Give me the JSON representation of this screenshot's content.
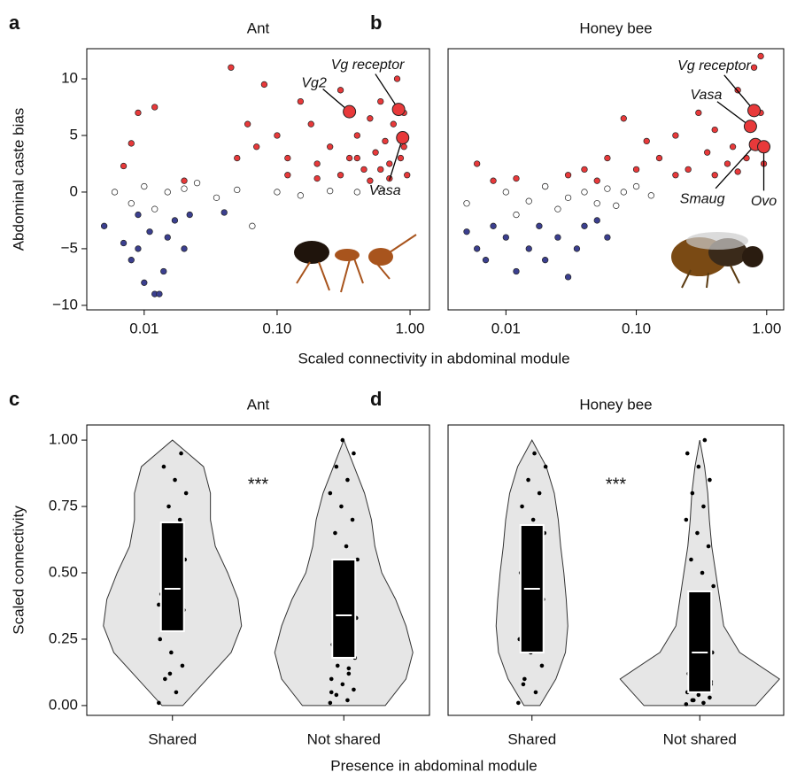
{
  "chart_data": [
    {
      "type": "scatter",
      "panel_label": "a",
      "title": "Ant",
      "ylabel": "Abdominal caste bias",
      "xlabel": "Scaled connectivity in abdominal module",
      "xlog": true,
      "xlim": [
        0.0037,
        1.4
      ],
      "ylim": [
        -10.4,
        12.66
      ],
      "xticks": [
        {
          "value": 0.01,
          "label": "0.01"
        },
        {
          "value": 0.1,
          "label": "0.10"
        },
        {
          "value": 1,
          "label": "1.00"
        }
      ],
      "yticks": [
        {
          "value": -10,
          "label": "−10"
        },
        {
          "value": -5,
          "label": "−5"
        },
        0,
        5,
        10
      ],
      "series": [
        {
          "color": "#e8393a",
          "x": [
            0.008,
            0.009,
            0.012,
            0.007,
            0.02,
            0.045,
            0.05,
            0.06,
            0.07,
            0.08,
            0.1,
            0.12,
            0.15,
            0.18,
            0.2,
            0.25,
            0.3,
            0.35,
            0.4,
            0.45,
            0.5,
            0.55,
            0.6,
            0.65,
            0.7,
            0.75,
            0.8,
            0.85,
            0.9,
            0.95,
            0.3,
            0.5,
            0.7,
            0.2,
            0.12,
            0.6,
            0.9,
            0.4
          ],
          "values": [
            4.3,
            7,
            7.5,
            2.3,
            1,
            11,
            3,
            6,
            4,
            9.5,
            5,
            3,
            8,
            6,
            2.5,
            4,
            9,
            3,
            5,
            2,
            6.5,
            3.5,
            8,
            4.5,
            2.5,
            6,
            10,
            3,
            7,
            1.5,
            1.5,
            1,
            1.2,
            1.2,
            1.5,
            2,
            4,
            3
          ]
        },
        {
          "color": "#ffffff",
          "x": [
            0.006,
            0.008,
            0.01,
            0.012,
            0.015,
            0.02,
            0.025,
            0.035,
            0.05,
            0.065,
            0.1,
            0.15,
            0.25,
            0.4,
            0.6
          ],
          "values": [
            0,
            -1,
            0.5,
            -1.5,
            0,
            0.3,
            0.8,
            -0.5,
            0.2,
            -3,
            0,
            -0.3,
            0.1,
            0,
            0.3
          ]
        },
        {
          "color": "#3b3f8f",
          "x": [
            0.005,
            0.007,
            0.008,
            0.009,
            0.01,
            0.011,
            0.012,
            0.013,
            0.014,
            0.015,
            0.017,
            0.02,
            0.022,
            0.04,
            0.009
          ],
          "values": [
            -3,
            -4.5,
            -6,
            -5,
            -8,
            -3.5,
            -9,
            -9,
            -7,
            -4,
            -2.5,
            -5,
            -2,
            -1.8,
            -2
          ]
        }
      ],
      "annotations": [
        {
          "text": "Vg2",
          "x": 0.35,
          "y": 7.1
        },
        {
          "text": "Vg receptor",
          "x": 0.82,
          "y": 7.3
        },
        {
          "text": "Vasa",
          "x": 0.88,
          "y": 4.8
        }
      ]
    },
    {
      "type": "scatter",
      "panel_label": "b",
      "title": "Honey bee",
      "xlog": true,
      "xlim": [
        0.0036,
        1.35
      ],
      "ylim": [
        -10.4,
        12.66
      ],
      "xticks": [
        {
          "value": 0.01,
          "label": "0.01"
        },
        {
          "value": 0.1,
          "label": "0.10"
        },
        {
          "value": 1,
          "label": "1.00"
        }
      ],
      "series": [
        {
          "color": "#e8393a",
          "x": [
            0.006,
            0.008,
            0.012,
            0.02,
            0.03,
            0.04,
            0.05,
            0.06,
            0.08,
            0.1,
            0.12,
            0.15,
            0.2,
            0.25,
            0.3,
            0.35,
            0.4,
            0.5,
            0.55,
            0.6,
            0.7,
            0.75,
            0.8,
            0.85,
            0.9,
            0.95,
            0.2,
            0.4,
            0.6,
            0.9
          ],
          "values": [
            2.5,
            1,
            1.2,
            0.5,
            1.5,
            2,
            1,
            3,
            6.5,
            2,
            4.5,
            3,
            5,
            2,
            7,
            3.5,
            5.5,
            2.5,
            4,
            9,
            3,
            6,
            11,
            4,
            12,
            2.5,
            1.5,
            1.5,
            1.8,
            7
          ]
        },
        {
          "color": "#ffffff",
          "x": [
            0.005,
            0.01,
            0.015,
            0.02,
            0.03,
            0.04,
            0.05,
            0.06,
            0.08,
            0.1,
            0.13,
            0.07,
            0.025,
            0.012
          ],
          "values": [
            -1,
            0,
            -0.8,
            0.5,
            -0.5,
            0,
            -1,
            0.3,
            0,
            0.5,
            -0.3,
            -1.2,
            -1.5,
            -2
          ]
        },
        {
          "color": "#3b3f8f",
          "x": [
            0.005,
            0.006,
            0.007,
            0.008,
            0.01,
            0.012,
            0.015,
            0.018,
            0.02,
            0.025,
            0.03,
            0.035,
            0.04,
            0.05,
            0.06
          ],
          "values": [
            -3.5,
            -5,
            -6,
            -3,
            -4,
            -7,
            -5,
            -3,
            -6,
            -4,
            -7.5,
            -5,
            -3,
            -2.5,
            -4
          ]
        }
      ],
      "annotations": [
        {
          "text": "Vg receptor",
          "x": 0.8,
          "y": 7.2
        },
        {
          "text": "Vasa",
          "x": 0.75,
          "y": 5.8
        },
        {
          "text": "Smaug",
          "x": 0.82,
          "y": 4.2
        },
        {
          "text": "Ovo",
          "x": 0.95,
          "y": 4
        }
      ]
    },
    {
      "type": "violin",
      "panel_label": "c",
      "title": "Ant",
      "ylabel": "Scaled connectivity",
      "xlabel": "Presence in abdominal module",
      "ylim": [
        -0.037,
        1.057
      ],
      "yticks": [
        {
          "value": 0,
          "label": "0.00"
        },
        {
          "value": 0.25,
          "label": "0.25"
        },
        {
          "value": 0.5,
          "label": "0.50"
        },
        {
          "value": 0.75,
          "label": "0.75"
        },
        {
          "value": 1,
          "label": "1.00"
        }
      ],
      "categories": [
        "Shared",
        "Not shared"
      ],
      "annotation": "***",
      "density_y": [
        0,
        0.1,
        0.2,
        0.3,
        0.4,
        0.5,
        0.6,
        0.7,
        0.8,
        0.9,
        1
      ],
      "groups": [
        {
          "q1": 0.28,
          "median": 0.44,
          "q3": 0.69,
          "density": [
            0.15,
            0.5,
            0.85,
            1,
            0.95,
            0.8,
            0.62,
            0.55,
            0.55,
            0.45,
            0
          ],
          "points": [
            0.01,
            0.05,
            0.1,
            0.15,
            0.2,
            0.25,
            0.3,
            0.33,
            0.36,
            0.4,
            0.42,
            0.45,
            0.5,
            0.55,
            0.6,
            0.65,
            0.7,
            0.75,
            0.8,
            0.85,
            0.9,
            0.95,
            0.12,
            0.38,
            0.62
          ]
        },
        {
          "q1": 0.18,
          "median": 0.34,
          "q3": 0.55,
          "density": [
            0.6,
            0.9,
            1,
            0.9,
            0.75,
            0.55,
            0.45,
            0.4,
            0.3,
            0.15,
            0
          ],
          "points": [
            0.01,
            0.02,
            0.04,
            0.06,
            0.08,
            0.1,
            0.12,
            0.15,
            0.18,
            0.2,
            0.23,
            0.26,
            0.3,
            0.33,
            0.36,
            0.4,
            0.45,
            0.5,
            0.55,
            0.6,
            0.65,
            0.7,
            0.75,
            0.8,
            0.85,
            0.9,
            0.95,
            1.0,
            0.05,
            0.14,
            0.28
          ]
        }
      ]
    },
    {
      "type": "violin",
      "panel_label": "d",
      "title": "Honey bee",
      "ylim": [
        -0.037,
        1.057
      ],
      "categories": [
        "Shared",
        "Not shared"
      ],
      "annotation": "***",
      "density_y": [
        0,
        0.1,
        0.2,
        0.3,
        0.4,
        0.5,
        0.6,
        0.7,
        0.8,
        0.9,
        1
      ],
      "groups": [
        {
          "q1": 0.2,
          "median": 0.44,
          "q3": 0.68,
          "density": [
            0.1,
            0.3,
            0.42,
            0.45,
            0.43,
            0.4,
            0.36,
            0.33,
            0.28,
            0.18,
            0
          ],
          "points": [
            0.01,
            0.05,
            0.1,
            0.15,
            0.2,
            0.25,
            0.3,
            0.35,
            0.4,
            0.45,
            0.5,
            0.55,
            0.6,
            0.65,
            0.7,
            0.75,
            0.8,
            0.85,
            0.9,
            0.95,
            0.08,
            0.38,
            0.58
          ]
        },
        {
          "q1": 0.05,
          "median": 0.2,
          "q3": 0.43,
          "density": [
            0.7,
            1,
            0.5,
            0.3,
            0.25,
            0.2,
            0.15,
            0.12,
            0.1,
            0.06,
            0
          ],
          "points": [
            0.005,
            0.01,
            0.02,
            0.03,
            0.04,
            0.05,
            0.06,
            0.07,
            0.08,
            0.1,
            0.12,
            0.15,
            0.18,
            0.2,
            0.25,
            0.3,
            0.35,
            0.4,
            0.45,
            0.5,
            0.55,
            0.6,
            0.65,
            0.7,
            0.75,
            0.8,
            0.85,
            0.9,
            0.95,
            1.0,
            0.02,
            0.09
          ]
        }
      ]
    }
  ]
}
